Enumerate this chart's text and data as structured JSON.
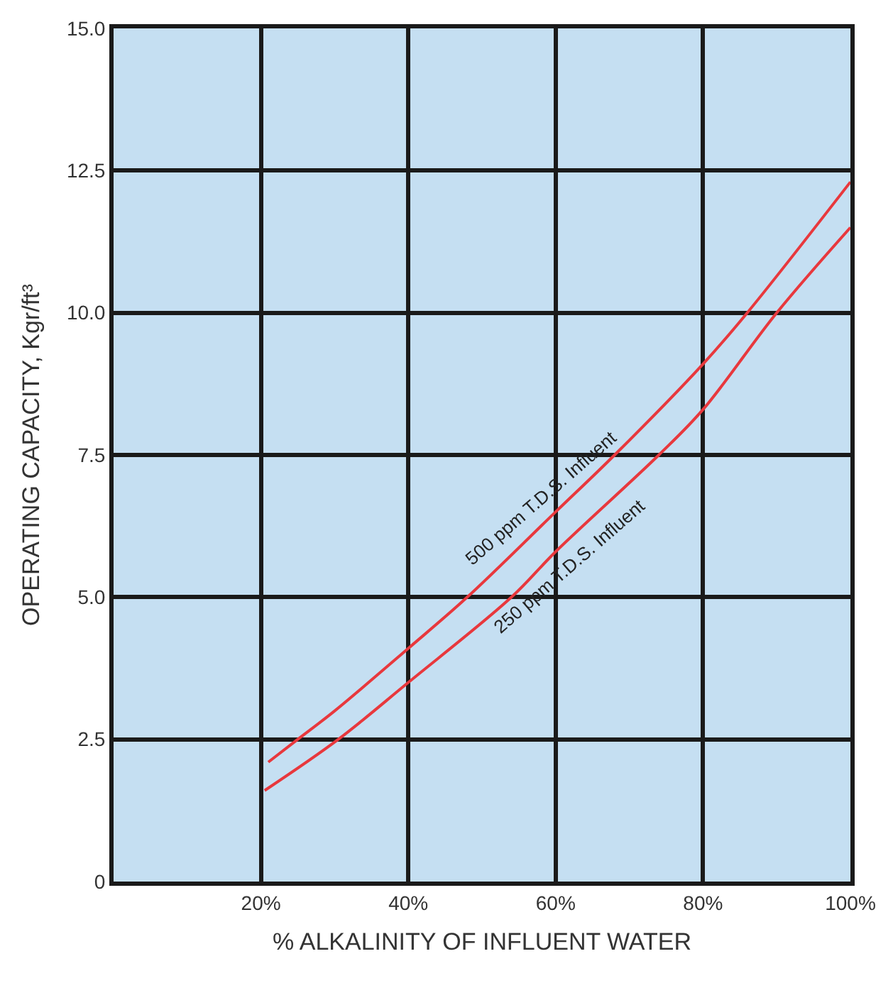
{
  "chart_data": {
    "type": "line",
    "xlabel": "% ALKALINITY OF INFLUENT WATER",
    "ylabel": "OPERATING CAPACITY, Kgr/ft³",
    "series": [
      {
        "color": "#e8383d",
        "x": [
          21,
          25,
          30,
          40,
          48,
          60,
          68,
          80,
          86,
          100
        ],
        "values": [
          2.1,
          2.5,
          3.0,
          4.1,
          5.0,
          6.5,
          7.5,
          9.1,
          10.0,
          12.3
        ]
      },
      {
        "color": "#e8383d",
        "x": [
          20.5,
          30.5,
          40,
          54,
          60,
          74,
          80,
          90,
          100
        ],
        "values": [
          1.6,
          2.5,
          3.5,
          5.0,
          5.8,
          7.5,
          8.3,
          10.0,
          11.5
        ]
      }
    ],
    "annotations": [
      "500 ppm T.D.S. Influent",
      "250 ppm T.D.S. Influent"
    ],
    "xlim": [
      0,
      100
    ],
    "xticks": [
      {
        "value": 20,
        "label": "20%"
      },
      {
        "value": 40,
        "label": "40%"
      },
      {
        "value": 60,
        "label": "60%"
      },
      {
        "value": 80,
        "label": "80%"
      },
      {
        "value": 100,
        "label": "100%"
      }
    ],
    "ylim": [
      0,
      15
    ],
    "yticks": [
      {
        "value": 0,
        "label": "0"
      },
      {
        "value": 2.5,
        "label": "2.5"
      },
      {
        "value": 5,
        "label": "5.0"
      },
      {
        "value": 7.5,
        "label": "7.5"
      },
      {
        "value": 10,
        "label": "10.0"
      },
      {
        "value": 12.5,
        "label": "12.5"
      },
      {
        "value": 15,
        "label": "15.0"
      }
    ],
    "grid": true,
    "marker": "none",
    "line_style": "solid"
  }
}
